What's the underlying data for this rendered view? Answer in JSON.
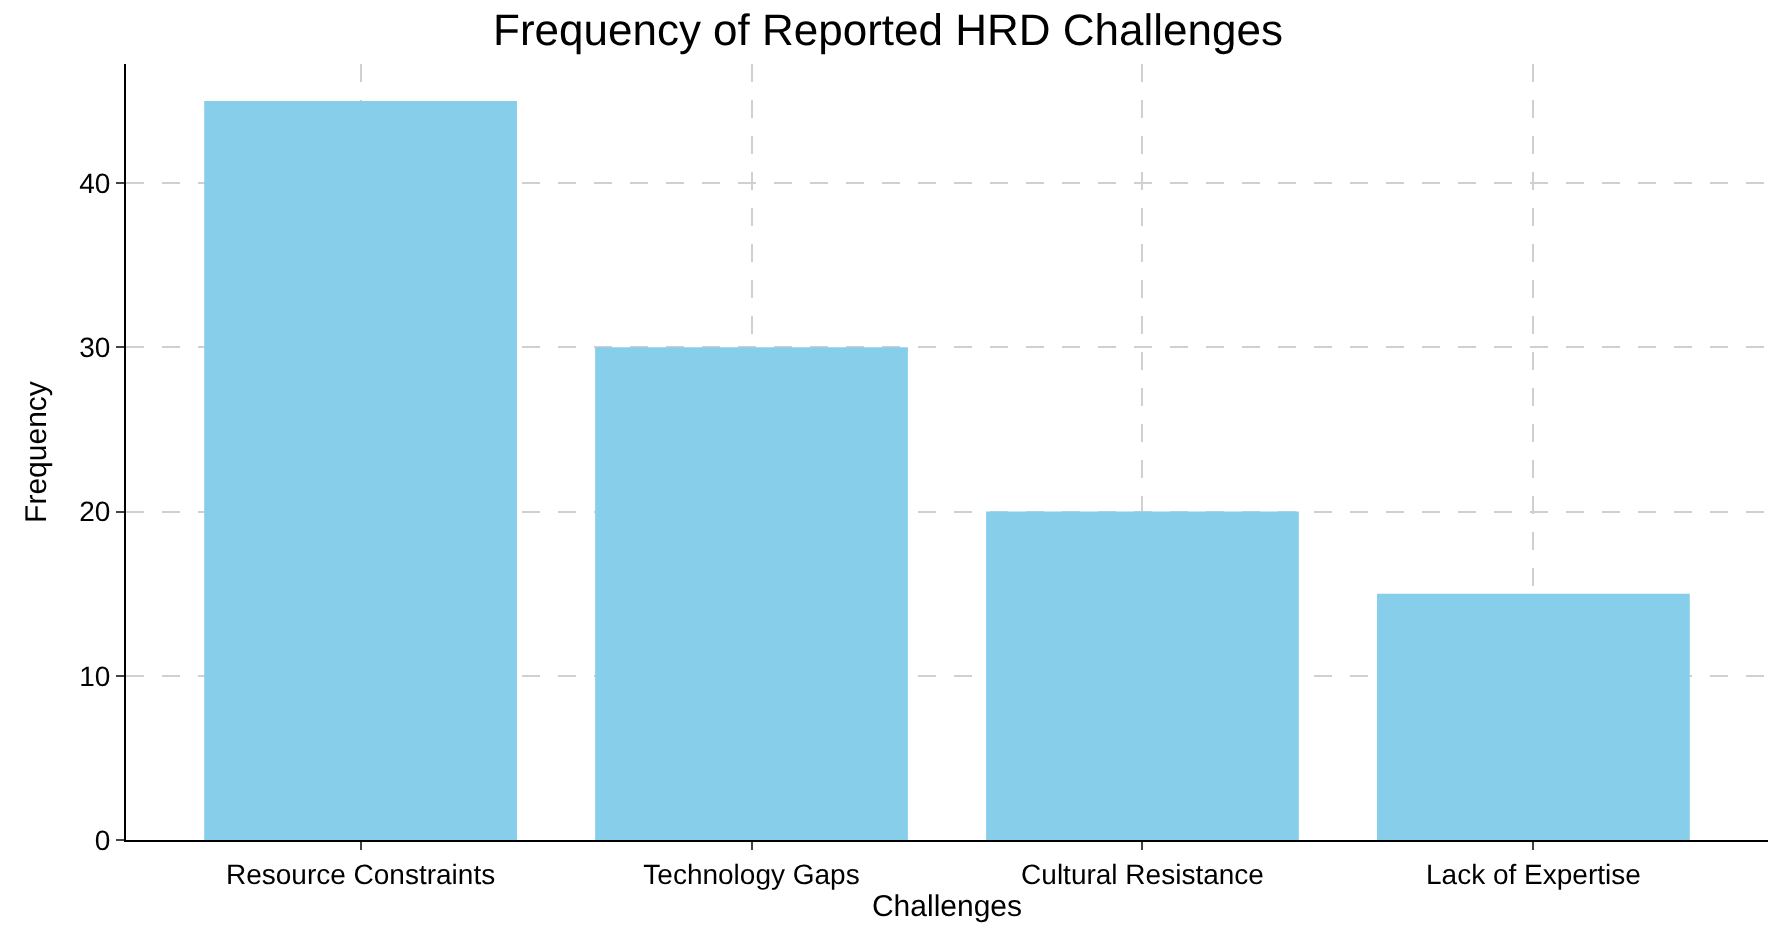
{
  "chart_data": {
    "type": "bar",
    "title": "Frequency of Reported HRD Challenges",
    "xlabel": "Challenges",
    "ylabel": "Frequency",
    "categories": [
      "Resource Constraints",
      "Technology Gaps",
      "Cultural Resistance",
      "Lack of Expertise"
    ],
    "values": [
      45,
      30,
      20,
      15
    ],
    "color": "#87ceeb",
    "ylim": [
      0,
      47.25
    ],
    "yticks": [
      0,
      10,
      20,
      30,
      40
    ],
    "grid": true,
    "legend": false
  }
}
